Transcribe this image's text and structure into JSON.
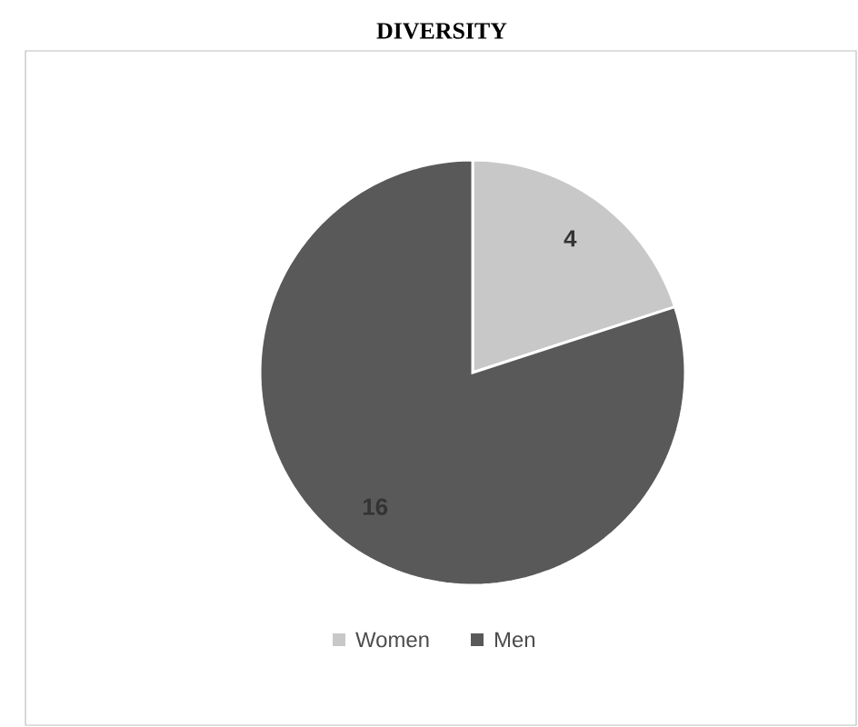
{
  "chart_data": {
    "type": "pie",
    "title": "DIVERSITY",
    "categories": [
      "Women",
      "Men"
    ],
    "values": [
      4,
      16
    ],
    "colors": [
      "#c8c8c8",
      "#595959"
    ],
    "data_labels": true,
    "legend": "bottom"
  }
}
